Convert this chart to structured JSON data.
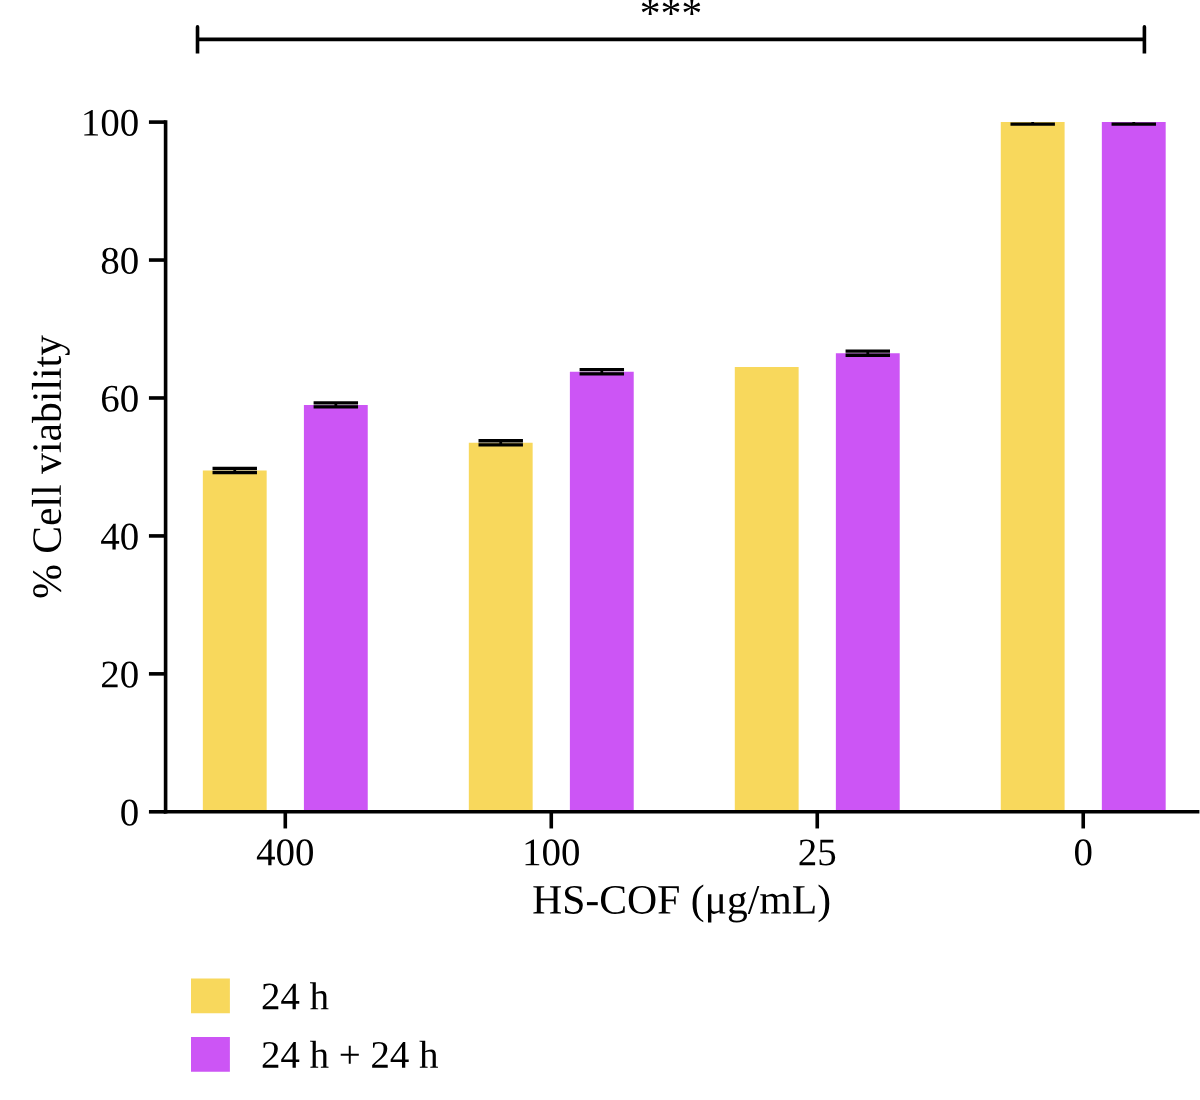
{
  "chart_data": {
    "type": "bar",
    "xlabel": "HS-COF (μg/mL)",
    "ylabel": "% Cell viability",
    "categories": [
      "400",
      "100",
      "25",
      "0"
    ],
    "series": [
      {
        "name": "24 h",
        "color": "#f8d85c",
        "values": [
          49.5,
          53.5,
          64.5,
          100
        ],
        "errors": [
          0.3,
          0.3,
          null,
          0.3
        ]
      },
      {
        "name": "24 h + 24 h",
        "color": "#cc55f5",
        "values": [
          59,
          63.8,
          66.5,
          100
        ],
        "errors": [
          0.3,
          0.3,
          0.3,
          0.3
        ]
      }
    ],
    "ylim": [
      0,
      100
    ],
    "yticks": [
      0,
      20,
      40,
      60,
      80,
      100
    ],
    "grid": false,
    "legend": "bottom left",
    "annotations": [
      "***"
    ]
  }
}
